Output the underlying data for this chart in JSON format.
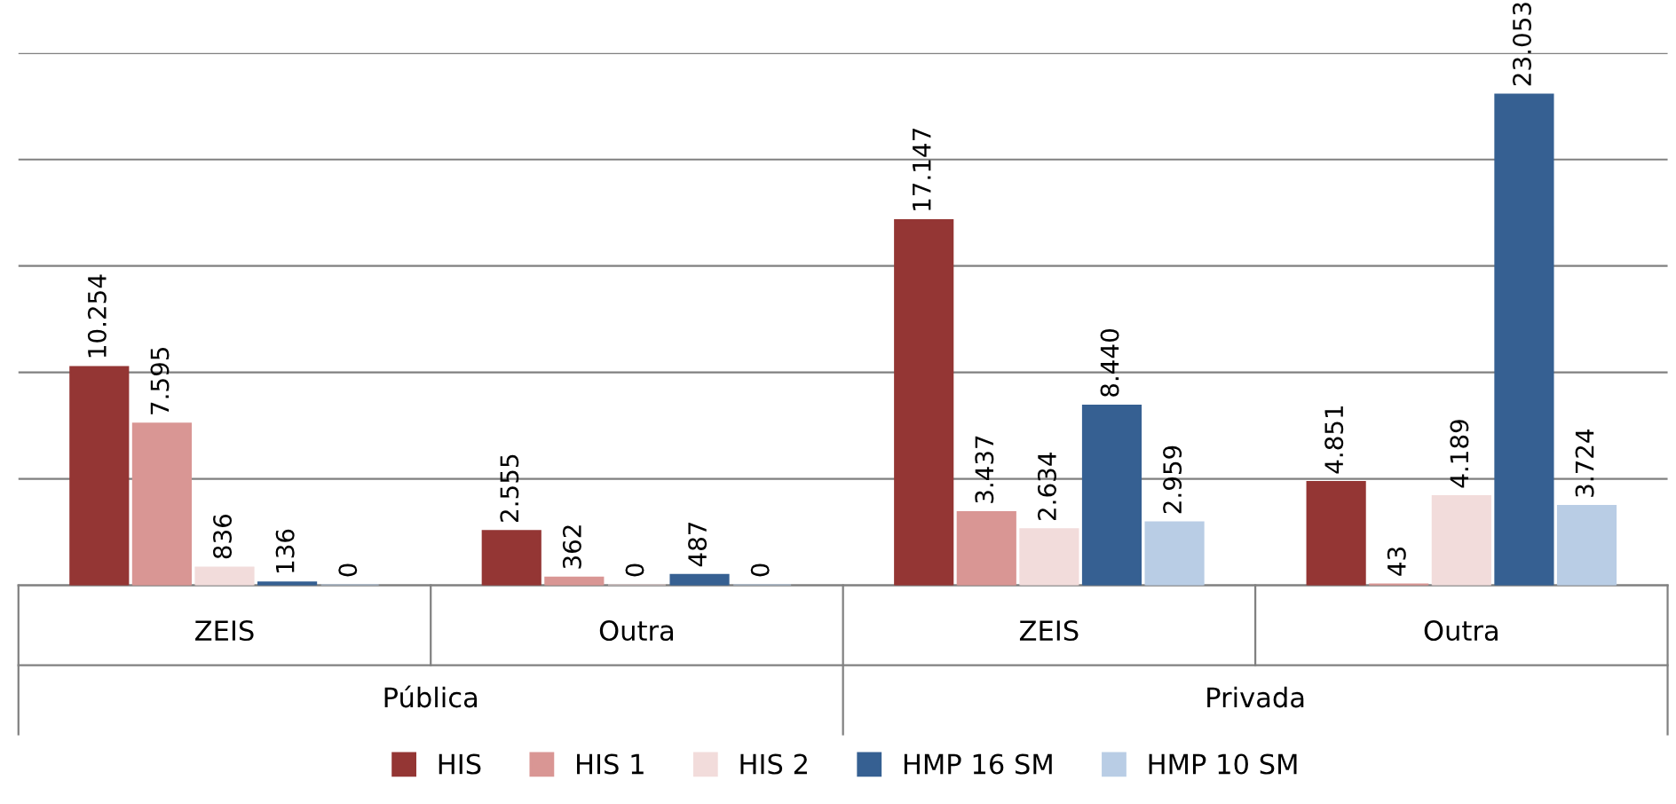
{
  "chart_data": {
    "type": "bar",
    "categories": [
      "ZEIS",
      "Outra",
      "ZEIS",
      "Outra"
    ],
    "annotations": [
      "Pública",
      "Privada"
    ],
    "series": [
      {
        "name": "HIS",
        "color": "#943634",
        "values": [
          10254,
          2555,
          17147,
          4851
        ],
        "value_labels": [
          "10.254",
          "2.555",
          "17.147",
          "4.851"
        ]
      },
      {
        "name": "HIS 1",
        "color": "#d99694",
        "values": [
          7595,
          362,
          3437,
          43
        ],
        "value_labels": [
          "7.595",
          "362",
          "3.437",
          "43"
        ]
      },
      {
        "name": "HIS 2",
        "color": "#f2dcdb",
        "values": [
          836,
          0,
          2634,
          4189
        ],
        "value_labels": [
          "836",
          "0",
          "2.634",
          "4.189"
        ]
      },
      {
        "name": "HMP 16 SM",
        "color": "#366092",
        "values": [
          136,
          487,
          8440,
          23053
        ],
        "value_labels": [
          "136",
          "487",
          "8.440",
          "23.053"
        ]
      },
      {
        "name": "HMP 10 SM",
        "color": "#b9cde5",
        "values": [
          0,
          0,
          2959,
          3724
        ],
        "value_labels": [
          "0",
          "0",
          "2.959",
          "3.724"
        ]
      }
    ],
    "ylim": [
      0,
      25000
    ],
    "yticks": [
      {
        "value": 0,
        "label": null
      },
      {
        "value": 5000,
        "label": null
      },
      {
        "value": 10000,
        "label": null
      },
      {
        "value": 15000,
        "label": null
      },
      {
        "value": 20000,
        "label": null
      },
      {
        "value": 25000,
        "label": null
      }
    ],
    "tick_labels": "x",
    "grid": "y",
    "legend": "bottom"
  }
}
